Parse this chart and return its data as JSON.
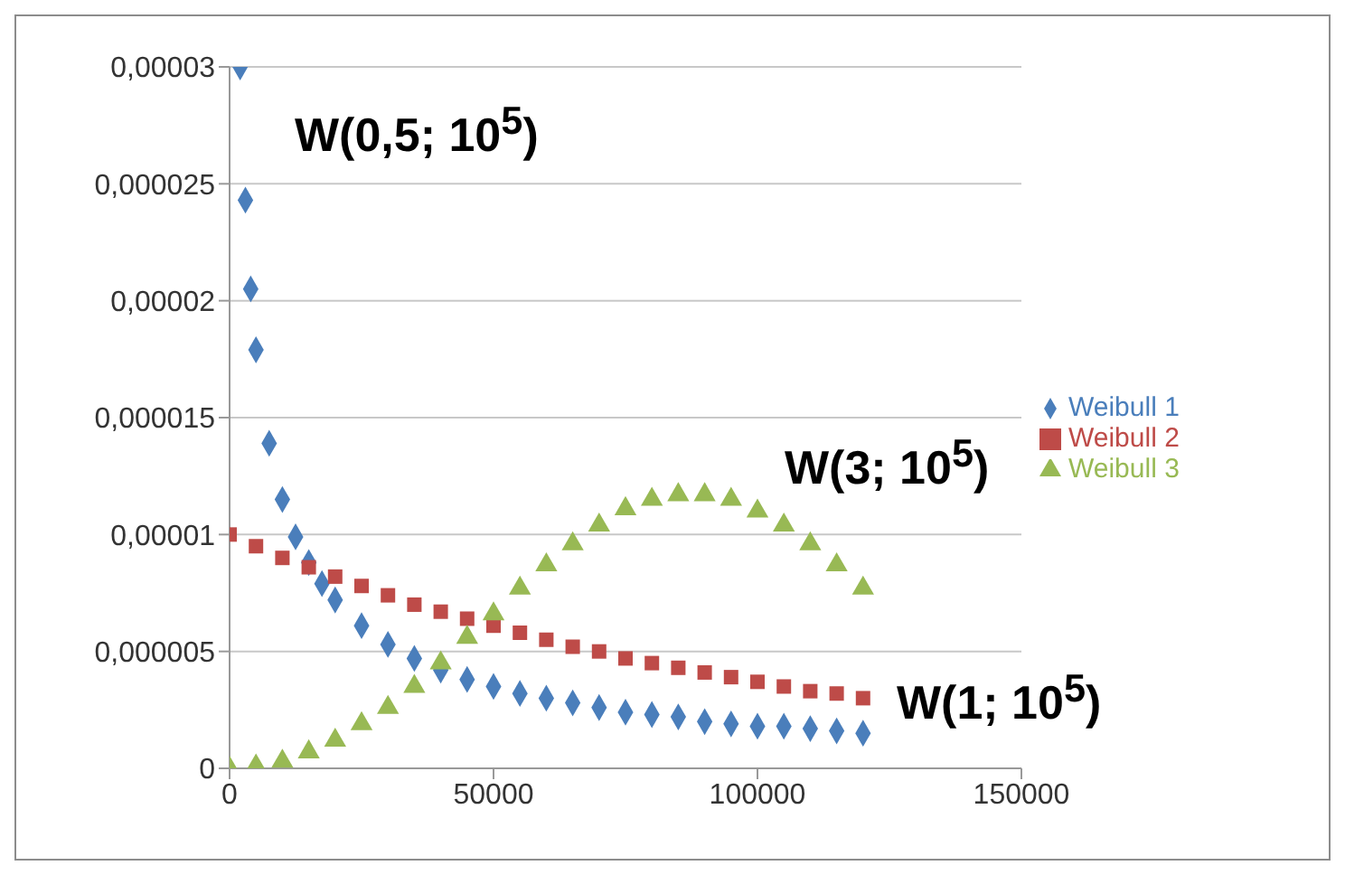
{
  "chart_data": {
    "type": "scatter",
    "xlim": [
      0,
      150000
    ],
    "xticks": [
      0,
      50000,
      100000,
      150000
    ],
    "ylim": [
      0,
      3e-05
    ],
    "yticks": [
      {
        "value": 0,
        "label": "0"
      },
      {
        "value": 5e-06,
        "label": "0,000005"
      },
      {
        "value": 1e-05,
        "label": "0,00001"
      },
      {
        "value": 1.5e-05,
        "label": "0,000015"
      },
      {
        "value": 2e-05,
        "label": "0,00002"
      },
      {
        "value": 2.5e-05,
        "label": "0,000025"
      },
      {
        "value": 3e-05,
        "label": "0,00003"
      }
    ],
    "grid": "y",
    "legend": "right",
    "series": [
      {
        "name": "Weibull 1",
        "color": "#4a7ebb",
        "marker": "diamond",
        "x": [
          2000,
          3000,
          4000,
          5000,
          7500,
          10000,
          12500,
          15000,
          17500,
          20000,
          25000,
          30000,
          35000,
          40000,
          45000,
          50000,
          55000,
          60000,
          65000,
          70000,
          75000,
          80000,
          85000,
          90000,
          95000,
          100000,
          105000,
          110000,
          115000,
          120000
        ],
        "values": [
          3e-05,
          2.43e-05,
          2.05e-05,
          1.79e-05,
          1.39e-05,
          1.15e-05,
          9.9e-06,
          8.8e-06,
          7.9e-06,
          7.2e-06,
          6.1e-06,
          5.3e-06,
          4.7e-06,
          4.2e-06,
          3.8e-06,
          3.5e-06,
          3.2e-06,
          3e-06,
          2.8e-06,
          2.6e-06,
          2.4e-06,
          2.3e-06,
          2.2e-06,
          2e-06,
          1.9e-06,
          1.8e-06,
          1.8e-06,
          1.7e-06,
          1.6e-06,
          1.5e-06
        ]
      },
      {
        "name": "Weibull 2",
        "color": "#be4b48",
        "marker": "square",
        "x": [
          0,
          5000,
          10000,
          15000,
          20000,
          25000,
          30000,
          35000,
          40000,
          45000,
          50000,
          55000,
          60000,
          65000,
          70000,
          75000,
          80000,
          85000,
          90000,
          95000,
          100000,
          105000,
          110000,
          115000,
          120000
        ],
        "values": [
          1e-05,
          9.5e-06,
          9e-06,
          8.6e-06,
          8.2e-06,
          7.8e-06,
          7.4e-06,
          7e-06,
          6.7e-06,
          6.4e-06,
          6.1e-06,
          5.8e-06,
          5.5e-06,
          5.2e-06,
          5e-06,
          4.7e-06,
          4.5e-06,
          4.3e-06,
          4.1e-06,
          3.9e-06,
          3.7e-06,
          3.5e-06,
          3.3e-06,
          3.2e-06,
          3e-06
        ]
      },
      {
        "name": "Weibull 3",
        "color": "#98b954",
        "marker": "triangle",
        "x": [
          0,
          5000,
          10000,
          15000,
          20000,
          25000,
          30000,
          35000,
          40000,
          45000,
          50000,
          55000,
          60000,
          65000,
          70000,
          75000,
          80000,
          85000,
          90000,
          95000,
          100000,
          105000,
          110000,
          115000,
          120000
        ],
        "values": [
          0,
          1e-07,
          3e-07,
          7e-07,
          1.2e-06,
          1.9e-06,
          2.6e-06,
          3.5e-06,
          4.5e-06,
          5.6e-06,
          6.6e-06,
          7.7e-06,
          8.7e-06,
          9.6e-06,
          1.04e-05,
          1.11e-05,
          1.15e-05,
          1.17e-05,
          1.17e-05,
          1.15e-05,
          1.1e-05,
          1.04e-05,
          9.6e-06,
          8.7e-06,
          7.7e-06
        ]
      }
    ],
    "annotations": [
      "W(0,5; 10$^{5}$)",
      "W(3; 10$^{5}$)",
      "W(1; 10$^{5}$)"
    ]
  }
}
